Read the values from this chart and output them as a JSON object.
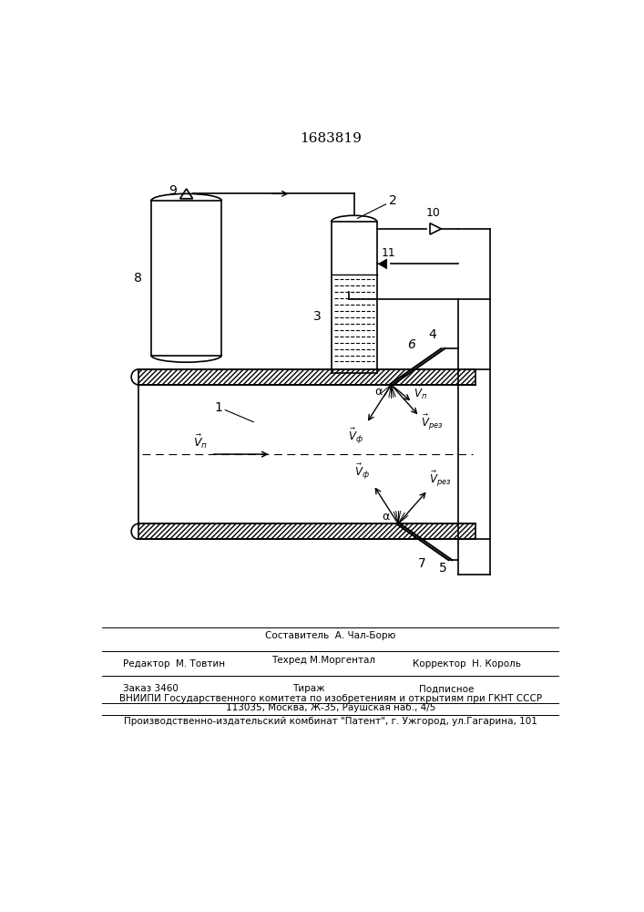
{
  "patent_number": "1683819",
  "bg_color": "#ffffff",
  "lc": "#000000",
  "sestavitel": "Составитель  А. Чал-Борю",
  "footer1a": "Редактор  М. Товтин",
  "footer1b": "Техред М.Моргентал",
  "footer1c": "Корректор  Н. Король",
  "footer2a": "Заказ 3460",
  "footer2b": "Тираж",
  "footer2c": "Подписное",
  "footer3": "ВНИИПИ Государственного комитета по изобретениям и открытиям при ГКНТ СССР",
  "footer4": "113035, Москва, Ж-35, Раушская наб., 4/5",
  "footer5": "Производственно-издательский комбинат \"Патент\", г. Ужгород, ул.Гагарина, 101"
}
